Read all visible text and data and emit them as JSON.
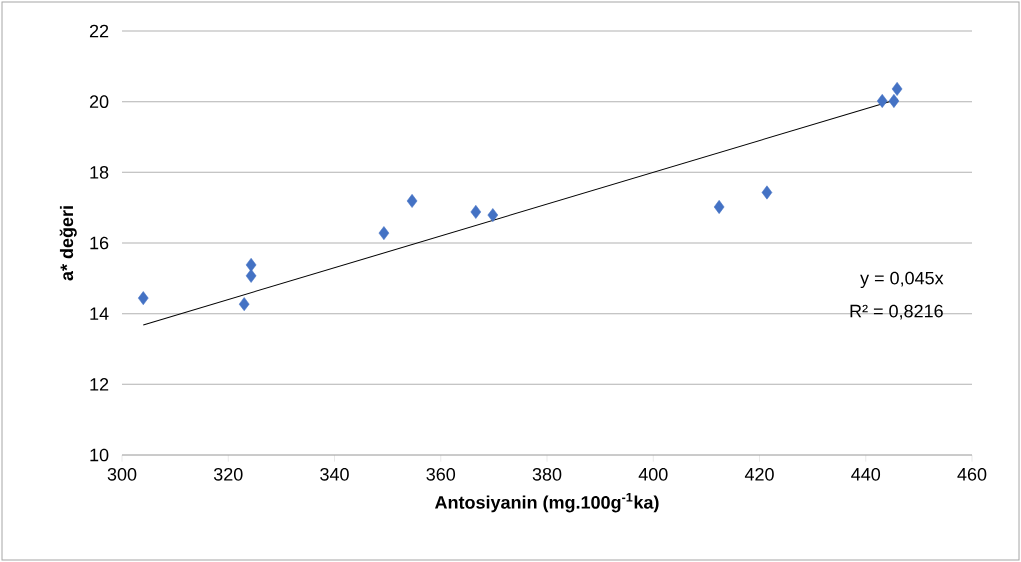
{
  "chart_data": {
    "type": "scatter",
    "xlabel": "Antosiyanin (mg.100g$^{-1}$ka)",
    "ylabel": "a* değeri",
    "series": [
      {
        "color": "#4472c4",
        "marker": "diamond",
        "x": [
          304.0,
          323.0,
          324.3,
          324.3,
          349.3,
          354.6,
          366.6,
          369.8,
          412.4,
          421.4,
          443.1,
          445.3,
          445.9
        ],
        "values": [
          14.44,
          14.27,
          15.38,
          15.07,
          16.28,
          17.19,
          16.88,
          16.79,
          17.02,
          17.43,
          20.02,
          20.02,
          20.36
        ]
      },
      {
        "type": "line",
        "color": "#000000",
        "marker": "none",
        "line_style": "solid",
        "x": [
          304,
          446
        ],
        "values": [
          13.68,
          20.07
        ]
      }
    ],
    "xlim": [
      300,
      460
    ],
    "ylim": [
      10,
      22
    ],
    "xticks": [
      300,
      320,
      340,
      360,
      380,
      400,
      420,
      440,
      460
    ],
    "yticks": [
      10,
      12,
      14,
      16,
      18,
      20,
      22
    ],
    "grid": "y",
    "annotations": [
      "y = 0,045x",
      "R² = 0,8216"
    ]
  }
}
